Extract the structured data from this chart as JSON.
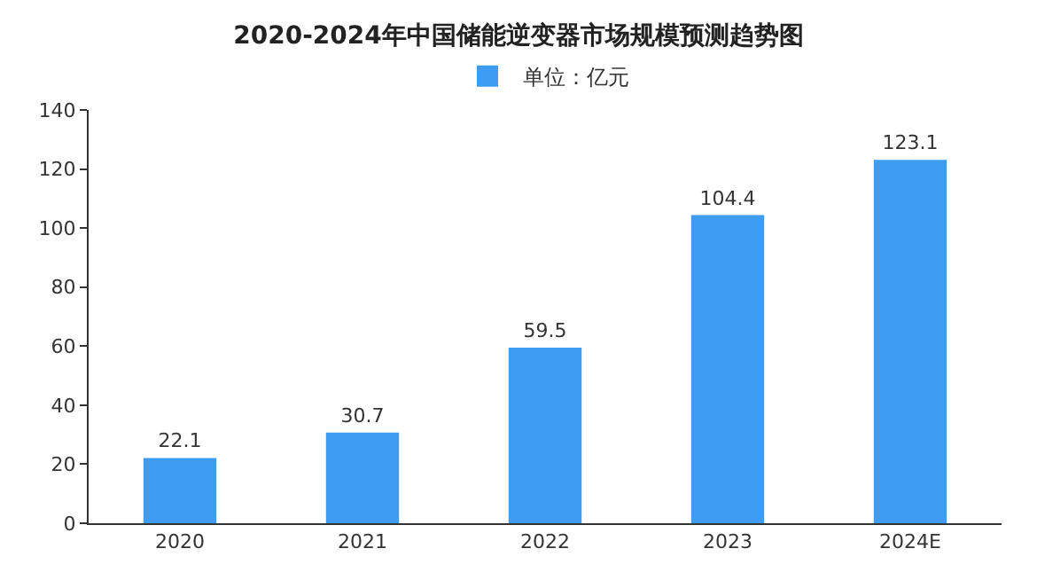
{
  "chart_data": {
    "type": "bar",
    "title": "2020-2024年中国储能逆变器市场规模预测趋势图",
    "categories": [
      "2020",
      "2021",
      "2022",
      "2023",
      "2024E"
    ],
    "series": [
      {
        "name": "单位：亿元",
        "color": "#3d9cf0",
        "values": [
          22.1,
          30.7,
          59.5,
          104.4,
          123.1
        ]
      }
    ],
    "ylim": [
      0,
      140
    ],
    "yticks": [
      0,
      20,
      40,
      60,
      80,
      100,
      120,
      140
    ],
    "data_labels": true,
    "grid": false,
    "legend": "top"
  }
}
